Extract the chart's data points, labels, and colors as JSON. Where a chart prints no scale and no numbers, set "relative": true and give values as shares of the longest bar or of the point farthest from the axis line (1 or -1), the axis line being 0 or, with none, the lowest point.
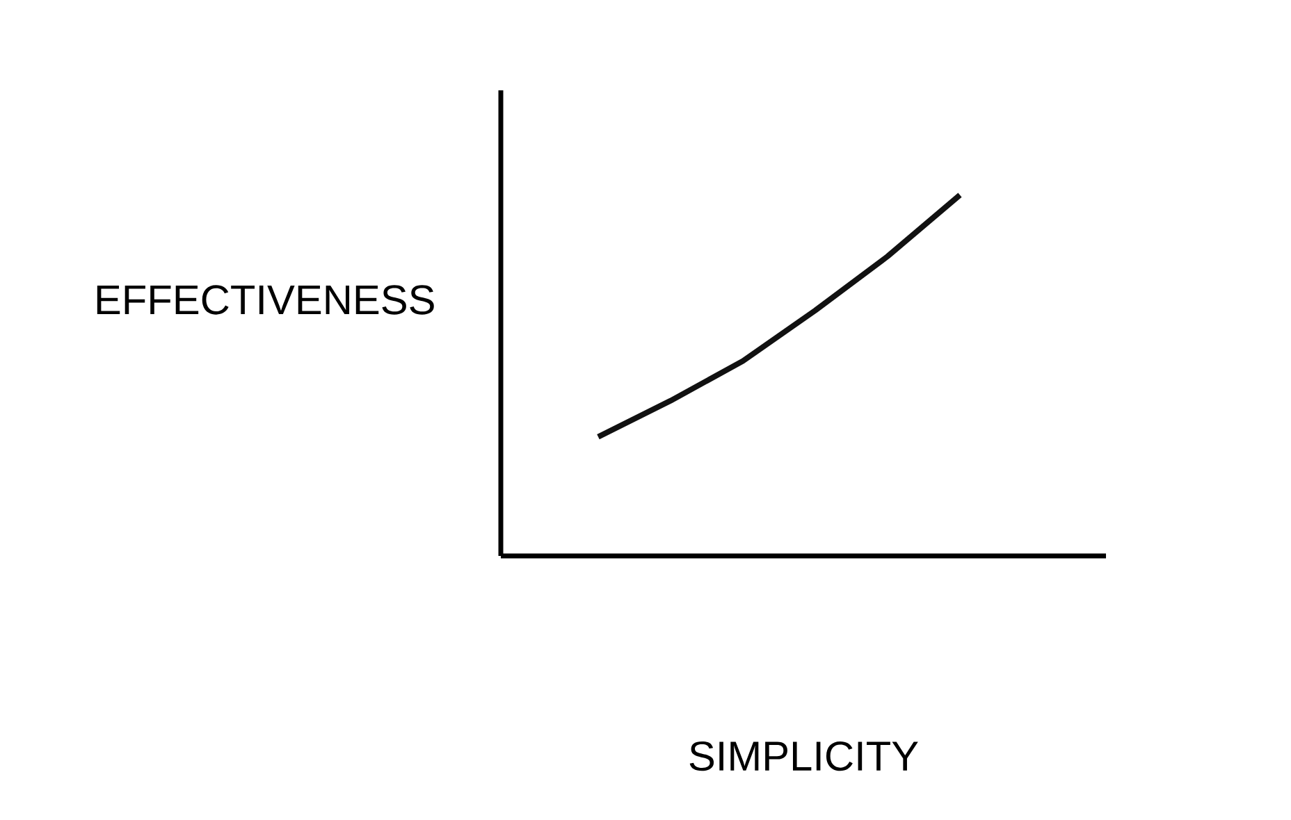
{
  "chart_data": {
    "type": "line",
    "relative": true,
    "xlabel": "SIMPLICITY",
    "ylabel": "EFFECTIVENESS",
    "categories": [
      null,
      null,
      null,
      null,
      null,
      null
    ],
    "values": [
      0.33,
      0.43,
      0.54,
      0.68,
      0.83,
      1
    ],
    "color": "#111111",
    "marker": "none",
    "line_style": "solid"
  }
}
